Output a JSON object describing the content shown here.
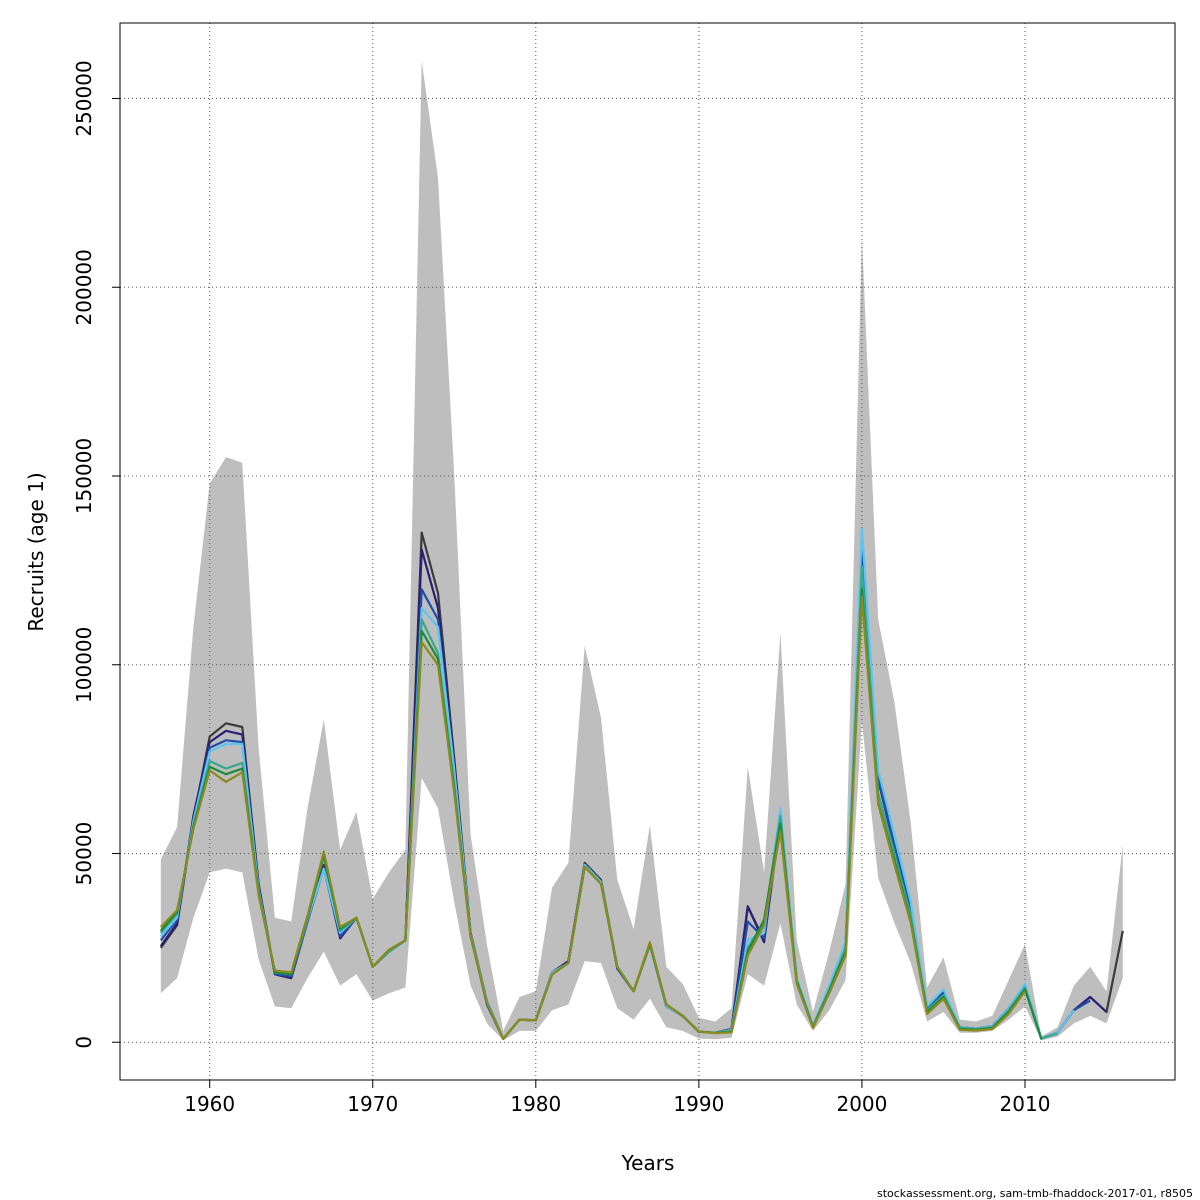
{
  "chart_data": {
    "type": "line",
    "title": "",
    "xlabel": "Years",
    "ylabel": "Recruits (age 1)",
    "xlim": [
      1954.5,
      2019.2
    ],
    "ylim": [
      -10000,
      270000
    ],
    "x_ticks": [
      1960,
      1970,
      1980,
      1990,
      2000,
      2010
    ],
    "x_tick_labels": [
      "1960",
      "1970",
      "1980",
      "1990",
      "2000",
      "2010"
    ],
    "y_ticks": [
      0,
      50000,
      100000,
      150000,
      200000,
      250000
    ],
    "y_tick_labels": [
      "0",
      "50000",
      "100000",
      "150000",
      "200000",
      "250000"
    ],
    "grid": true,
    "legend": "none",
    "footer": "stockassessment.org, sam-tmb-fhaddock-2017-01, r8505",
    "band": {
      "color": "#bebebe",
      "x": [
        1957,
        1958,
        1959,
        1960,
        1961,
        1962,
        1963,
        1964,
        1965,
        1966,
        1967,
        1968,
        1969,
        1970,
        1971,
        1972,
        1973,
        1974,
        1975,
        1976,
        1977,
        1978,
        1979,
        1980,
        1981,
        1982,
        1983,
        1984,
        1985,
        1986,
        1987,
        1988,
        1989,
        1990,
        1991,
        1992,
        1993,
        1994,
        1995,
        1996,
        1997,
        1998,
        1999,
        2000,
        2001,
        2002,
        2003,
        2004,
        2005,
        2006,
        2007,
        2008,
        2009,
        2010,
        2011,
        2012,
        2013,
        2014,
        2015,
        2016
      ],
      "lower": [
        13000,
        17000,
        33000,
        45000,
        46000,
        45000,
        22000,
        9500,
        9000,
        17000,
        24000,
        15000,
        18000,
        11000,
        13000,
        14500,
        70000,
        62000,
        37000,
        15000,
        5000,
        500,
        3000,
        3000,
        8500,
        10000,
        21500,
        21000,
        9000,
        6000,
        11500,
        4000,
        3000,
        1000,
        800,
        1200,
        18000,
        15000,
        31500,
        10000,
        3000,
        8500,
        16500,
        85000,
        43500,
        31500,
        21000,
        5500,
        8000,
        2500,
        2500,
        3000,
        6000,
        9500,
        500,
        1500,
        5000,
        7000,
        5000,
        17000
      ],
      "upper": [
        48500,
        57000,
        110000,
        148000,
        155000,
        153500,
        78000,
        33000,
        32000,
        62000,
        85500,
        51000,
        61000,
        38000,
        45000,
        51000,
        260000,
        229000,
        150000,
        55000,
        26000,
        3000,
        12000,
        13500,
        41000,
        47500,
        105000,
        86000,
        43000,
        30000,
        57500,
        20000,
        15500,
        6500,
        5500,
        9000,
        73000,
        45000,
        108500,
        27000,
        8000,
        24000,
        42000,
        213500,
        112000,
        90000,
        58000,
        14500,
        22500,
        6000,
        5500,
        7000,
        16500,
        26000,
        1500,
        4000,
        15000,
        20000,
        13500,
        52500
      ]
    },
    "series": [
      {
        "color": "#3b3b3b",
        "x": [
          1957,
          1958,
          1959,
          1960,
          1961,
          1962,
          1963,
          1964,
          1965,
          1966,
          1967,
          1968,
          1969,
          1970,
          1971,
          1972,
          1973,
          1974,
          1975,
          1976,
          1977,
          1978,
          1979,
          1980,
          1981,
          1982,
          1983,
          1984,
          1985,
          1986,
          1987,
          1988,
          1989,
          1990,
          1991,
          1992,
          1993,
          1994,
          1995,
          1996,
          1997,
          1998,
          1999,
          2000,
          2001,
          2002,
          2003,
          2004,
          2005,
          2006,
          2007,
          2008,
          2009,
          2010,
          2011,
          2012,
          2013,
          2014,
          2015,
          2016
        ],
        "values": [
          25000,
          31000,
          59000,
          81000,
          84500,
          83500,
          42000,
          18000,
          17000,
          32000,
          47000,
          28000,
          33000,
          20000,
          24000,
          27000,
          135000,
          119000,
          75000,
          29000,
          11000,
          900,
          6000,
          5800,
          18500,
          21500,
          47500,
          43000,
          20000,
          13500,
          26000,
          9500,
          7000,
          2800,
          2500,
          3500,
          36000,
          27000,
          60000,
          16500,
          4200,
          14000,
          25000,
          133000,
          70000,
          52000,
          35000,
          9000,
          13000,
          4000,
          3600,
          4300,
          9000,
          15000,
          1000,
          2600,
          8500,
          12000,
          8000,
          29500
        ]
      },
      {
        "color": "#2c1f78",
        "x": [
          1957,
          1958,
          1959,
          1960,
          1961,
          1962,
          1963,
          1964,
          1965,
          1966,
          1967,
          1968,
          1969,
          1970,
          1971,
          1972,
          1973,
          1974,
          1975,
          1976,
          1977,
          1978,
          1979,
          1980,
          1981,
          1982,
          1983,
          1984,
          1985,
          1986,
          1987,
          1988,
          1989,
          1990,
          1991,
          1992,
          1993,
          1994,
          1995,
          1996,
          1997,
          1998,
          1999,
          2000,
          2001,
          2002,
          2003,
          2004,
          2005,
          2006,
          2007,
          2008,
          2009,
          2010,
          2011,
          2012,
          2013,
          2014,
          2015
        ],
        "values": [
          25500,
          31500,
          60000,
          79500,
          82500,
          81500,
          41500,
          18000,
          17000,
          32000,
          46500,
          27500,
          33000,
          20000,
          24000,
          27000,
          130500,
          115000,
          73500,
          28500,
          10500,
          900,
          6000,
          5800,
          18500,
          21500,
          47000,
          42500,
          19500,
          13500,
          26000,
          9500,
          7000,
          2800,
          2500,
          3500,
          36000,
          26500,
          59500,
          16500,
          4200,
          14000,
          25000,
          130000,
          69500,
          51500,
          34500,
          9000,
          13000,
          4000,
          3600,
          4300,
          9000,
          15000,
          1000,
          2600,
          8500,
          12000,
          8000
        ]
      },
      {
        "color": "#1f4fa8",
        "x": [
          1957,
          1958,
          1959,
          1960,
          1961,
          1962,
          1963,
          1964,
          1965,
          1966,
          1967,
          1968,
          1969,
          1970,
          1971,
          1972,
          1973,
          1974,
          1975,
          1976,
          1977,
          1978,
          1979,
          1980,
          1981,
          1982,
          1983,
          1984,
          1985,
          1986,
          1987,
          1988,
          1989,
          1990,
          1991,
          1992,
          1993,
          1994,
          1995,
          1996,
          1997,
          1998,
          1999,
          2000,
          2001,
          2002,
          2003,
          2004,
          2005,
          2006,
          2007,
          2008,
          2009,
          2010,
          2011,
          2012,
          2013,
          2014
        ],
        "values": [
          27000,
          32500,
          59000,
          78000,
          80000,
          79500,
          41000,
          18000,
          17500,
          32000,
          46000,
          28000,
          33000,
          20000,
          24000,
          27000,
          120000,
          112000,
          72000,
          28500,
          10000,
          900,
          6000,
          5800,
          18500,
          21000,
          47000,
          42500,
          19500,
          13500,
          26000,
          9500,
          7000,
          2800,
          2500,
          3300,
          32000,
          27500,
          60000,
          16500,
          4200,
          14500,
          25500,
          133000,
          70000,
          52000,
          35000,
          9000,
          13500,
          4000,
          3600,
          4300,
          9000,
          15000,
          1000,
          2600,
          8500,
          11000
        ]
      },
      {
        "color": "#5ec4f0",
        "x": [
          1957,
          1958,
          1959,
          1960,
          1961,
          1962,
          1963,
          1964,
          1965,
          1966,
          1967,
          1968,
          1969,
          1970,
          1971,
          1972,
          1973,
          1974,
          1975,
          1976,
          1977,
          1978,
          1979,
          1980,
          1981,
          1982,
          1983,
          1984,
          1985,
          1986,
          1987,
          1988,
          1989,
          1990,
          1991,
          1992,
          1993,
          1994,
          1995,
          1996,
          1997,
          1998,
          1999,
          2000,
          2001,
          2002,
          2003,
          2004,
          2005,
          2006,
          2007,
          2008,
          2009,
          2010,
          2011,
          2012,
          2013
        ],
        "values": [
          28000,
          33000,
          58500,
          77000,
          79000,
          79000,
          40500,
          18500,
          18000,
          32500,
          46000,
          29000,
          33000,
          20000,
          24000,
          27000,
          115000,
          110000,
          72000,
          28500,
          11000,
          900,
          6000,
          5800,
          18500,
          21000,
          47000,
          42500,
          20000,
          13500,
          26000,
          9500,
          7000,
          2800,
          2500,
          3300,
          27000,
          29000,
          62000,
          17000,
          4500,
          15000,
          26500,
          136000,
          72000,
          55000,
          37000,
          9500,
          14000,
          4000,
          3600,
          4300,
          9000,
          15500,
          1000,
          2600,
          8500
        ]
      },
      {
        "color": "#3aa88a",
        "x": [
          1957,
          1958,
          1959,
          1960,
          1961,
          1962,
          1963,
          1964,
          1965,
          1966,
          1967,
          1968,
          1969,
          1970,
          1971,
          1972,
          1973,
          1974,
          1975,
          1976,
          1977,
          1978,
          1979,
          1980,
          1981,
          1982,
          1983,
          1984,
          1985,
          1986,
          1987,
          1988,
          1989,
          1990,
          1991,
          1992,
          1993,
          1994,
          1995,
          1996,
          1997,
          1998,
          1999,
          2000,
          2001,
          2002,
          2003,
          2004,
          2005,
          2006,
          2007,
          2008,
          2009,
          2010,
          2011,
          2012
        ],
        "values": [
          29000,
          34000,
          57500,
          74500,
          72500,
          74000,
          40000,
          18500,
          18000,
          33000,
          49500,
          29500,
          33000,
          20000,
          24000,
          27000,
          112000,
          103000,
          68000,
          28000,
          10500,
          900,
          6000,
          5800,
          18000,
          21000,
          46500,
          42000,
          20000,
          13500,
          26000,
          10000,
          7000,
          2800,
          2500,
          3000,
          25000,
          32000,
          60000,
          16500,
          4200,
          14000,
          25000,
          126000,
          66000,
          50000,
          33500,
          8500,
          12500,
          3800,
          3500,
          4000,
          8500,
          14500,
          1000,
          2300
        ]
      },
      {
        "color": "#1e8a3a",
        "x": [
          1957,
          1958,
          1959,
          1960,
          1961,
          1962,
          1963,
          1964,
          1965,
          1966,
          1967,
          1968,
          1969,
          1970,
          1971,
          1972,
          1973,
          1974,
          1975,
          1976,
          1977,
          1978,
          1979,
          1980,
          1981,
          1982,
          1983,
          1984,
          1985,
          1986,
          1987,
          1988,
          1989,
          1990,
          1991,
          1992,
          1993,
          1994,
          1995,
          1996,
          1997,
          1998,
          1999,
          2000,
          2001,
          2002,
          2003,
          2004,
          2005,
          2006,
          2007,
          2008,
          2009,
          2010,
          2011
        ],
        "values": [
          29500,
          34500,
          57000,
          73000,
          71000,
          72500,
          39500,
          18500,
          18000,
          33000,
          49500,
          30000,
          33000,
          20000,
          24500,
          27000,
          109000,
          101500,
          67000,
          28000,
          10500,
          900,
          6000,
          5800,
          18000,
          21000,
          46500,
          42000,
          20000,
          13500,
          26000,
          10000,
          7000,
          2800,
          2500,
          2800,
          24000,
          32500,
          58000,
          16000,
          4000,
          13500,
          24000,
          120000,
          63500,
          48000,
          32000,
          8000,
          12000,
          3500,
          3300,
          3800,
          8000,
          14000,
          800
        ]
      },
      {
        "color": "#8a8a1e",
        "x": [
          1957,
          1958,
          1959,
          1960,
          1961,
          1962,
          1963,
          1964,
          1965,
          1966,
          1967,
          1968,
          1969,
          1970,
          1971,
          1972,
          1973,
          1974,
          1975,
          1976,
          1977,
          1978,
          1979,
          1980,
          1981,
          1982,
          1983,
          1984,
          1985,
          1986,
          1987,
          1988,
          1989,
          1990,
          1991,
          1992,
          1993,
          1994,
          1995,
          1996,
          1997,
          1998,
          1999,
          2000,
          2001,
          2002,
          2003,
          2004,
          2005,
          2006,
          2007,
          2008,
          2009,
          2010
        ],
        "values": [
          30500,
          35000,
          56500,
          72000,
          69000,
          71500,
          39000,
          19000,
          18500,
          33500,
          50500,
          30500,
          33000,
          20000,
          24500,
          27000,
          106000,
          100000,
          66000,
          28000,
          10500,
          900,
          6000,
          5800,
          18000,
          21000,
          46500,
          42000,
          20000,
          13500,
          26500,
          10000,
          7000,
          2800,
          2400,
          2600,
          23000,
          31000,
          56000,
          15500,
          3800,
          13000,
          23000,
          118000,
          63000,
          47000,
          31500,
          7500,
          11500,
          3300,
          3100,
          3500,
          7500,
          13500
        ]
      }
    ]
  }
}
